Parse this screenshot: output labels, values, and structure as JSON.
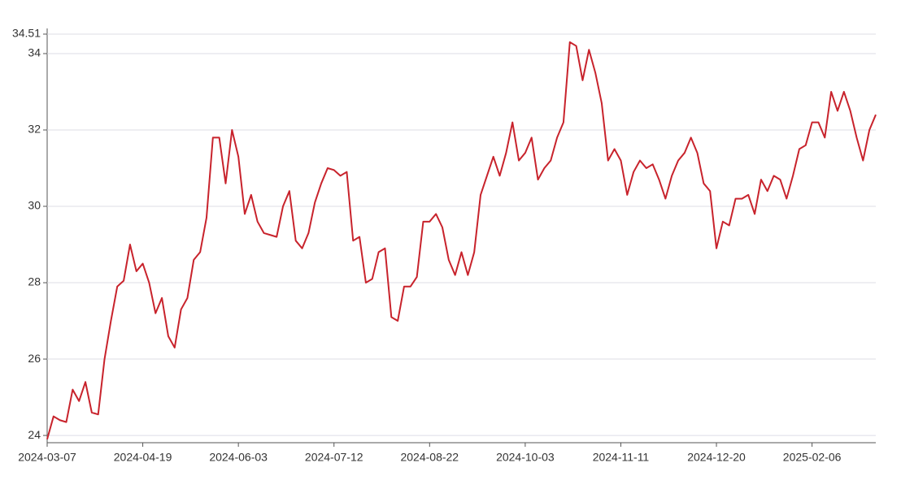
{
  "chart_data": {
    "type": "line",
    "color": "#c8232c",
    "grid": true,
    "ylim": [
      23.81,
      34.51
    ],
    "yticks": [
      24,
      26,
      28,
      30,
      32,
      34,
      34.51
    ],
    "categories": [
      "2024-03-07",
      null,
      null,
      null,
      null,
      null,
      null,
      null,
      null,
      null,
      null,
      null,
      null,
      null,
      null,
      "2024-04-19",
      null,
      null,
      null,
      null,
      null,
      null,
      null,
      null,
      null,
      null,
      null,
      null,
      null,
      null,
      "2024-06-03",
      null,
      null,
      null,
      null,
      null,
      null,
      null,
      null,
      null,
      null,
      null,
      null,
      null,
      null,
      "2024-07-12",
      null,
      null,
      null,
      null,
      null,
      null,
      null,
      null,
      null,
      null,
      null,
      null,
      null,
      null,
      "2024-08-22",
      null,
      null,
      null,
      null,
      null,
      null,
      null,
      null,
      null,
      null,
      null,
      null,
      null,
      null,
      "2024-10-03",
      null,
      null,
      null,
      null,
      null,
      null,
      null,
      null,
      null,
      null,
      null,
      null,
      null,
      null,
      "2024-11-11",
      null,
      null,
      null,
      null,
      null,
      null,
      null,
      null,
      null,
      null,
      null,
      null,
      null,
      null,
      "2024-12-20",
      null,
      null,
      null,
      null,
      null,
      null,
      null,
      null,
      null,
      null,
      null,
      null,
      null,
      null,
      "2025-02-06",
      null,
      null,
      null,
      null,
      null,
      null,
      null,
      null,
      null,
      null
    ],
    "values": [
      23.9,
      24.5,
      24.4,
      24.35,
      25.2,
      24.9,
      25.4,
      24.6,
      24.55,
      26.0,
      27.0,
      27.9,
      28.05,
      29.0,
      28.3,
      28.5,
      28.0,
      27.2,
      27.6,
      26.6,
      26.3,
      27.3,
      27.6,
      28.6,
      28.8,
      29.7,
      31.8,
      31.8,
      30.6,
      32.0,
      31.3,
      29.8,
      30.3,
      29.6,
      29.3,
      29.25,
      29.2,
      30.0,
      30.4,
      29.1,
      28.9,
      29.3,
      30.1,
      30.6,
      31.0,
      30.95,
      30.8,
      30.9,
      29.1,
      29.2,
      28.0,
      28.1,
      28.8,
      28.9,
      27.1,
      27.0,
      27.9,
      27.9,
      28.15,
      29.6,
      29.6,
      29.8,
      29.45,
      28.6,
      28.2,
      28.8,
      28.2,
      28.8,
      30.3,
      30.8,
      31.3,
      30.8,
      31.4,
      32.2,
      31.2,
      31.4,
      31.8,
      30.7,
      31.0,
      31.2,
      31.8,
      32.2,
      34.3,
      34.2,
      33.3,
      34.1,
      33.5,
      32.7,
      31.2,
      31.5,
      31.2,
      30.3,
      30.9,
      31.2,
      31.0,
      31.1,
      30.7,
      30.2,
      30.8,
      31.2,
      31.4,
      31.8,
      31.4,
      30.6,
      30.4,
      28.9,
      29.6,
      29.5,
      30.2,
      30.2,
      30.3,
      29.8,
      30.7,
      30.4,
      30.8,
      30.7,
      30.2,
      30.8,
      31.5,
      31.6,
      32.2,
      32.2,
      31.8,
      33.0,
      32.5,
      33.0,
      32.5,
      31.8,
      31.2,
      32.0,
      32.4
    ]
  }
}
